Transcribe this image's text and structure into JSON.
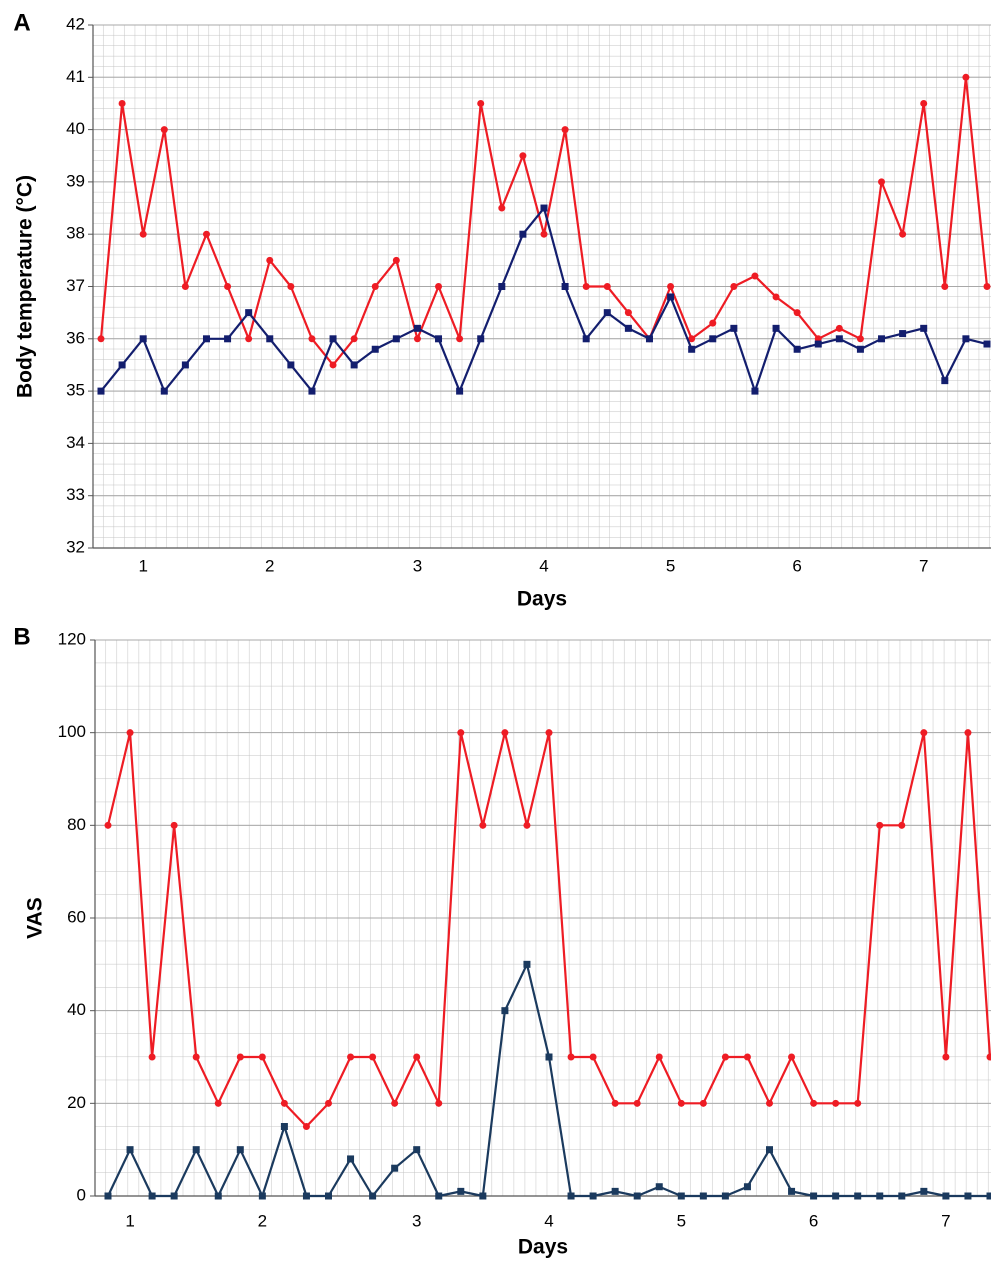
{
  "chart_data": [
    {
      "type": "line",
      "panel_label": "A",
      "ylabel": "Body temperature (°C)",
      "xlabel": "Days",
      "categories": [
        null,
        null,
        "1",
        null,
        null,
        null,
        null,
        null,
        "2",
        null,
        null,
        null,
        null,
        null,
        null,
        "3",
        null,
        null,
        null,
        null,
        null,
        "4",
        null,
        null,
        null,
        null,
        null,
        "5",
        null,
        null,
        null,
        null,
        null,
        "6",
        null,
        null,
        null,
        null,
        null,
        "7",
        null,
        null,
        null
      ],
      "series": [
        {
          "color": "#ee1c24",
          "marker": "circle",
          "values": [
            36,
            40.5,
            38,
            40,
            37,
            38,
            37,
            36,
            37.5,
            37,
            36,
            35.5,
            36,
            37,
            37.5,
            36,
            37,
            36,
            40.5,
            38.5,
            39.5,
            38,
            40,
            37,
            37,
            36.5,
            36,
            37,
            36,
            36.3,
            37,
            37.2,
            36.8,
            36.5,
            36,
            36.2,
            36,
            39,
            38,
            40.5,
            37,
            41,
            37
          ]
        },
        {
          "color": "#131e6e",
          "marker": "square",
          "values": [
            35,
            35.5,
            36,
            35,
            35.5,
            36,
            36,
            36.5,
            36,
            35.5,
            35,
            36,
            35.5,
            35.8,
            36,
            36.2,
            36,
            35,
            36,
            37,
            38,
            38.5,
            37,
            36,
            36.5,
            36.2,
            36,
            36.8,
            35.8,
            36,
            36.2,
            35,
            36.2,
            35.8,
            35.9,
            36,
            35.8,
            36,
            36.1,
            36.2,
            35.2,
            36,
            35.9
          ]
        }
      ],
      "ylim": [
        32,
        42
      ],
      "yticks": [
        32,
        33,
        34,
        35,
        36,
        37,
        38,
        39,
        40,
        41,
        42
      ],
      "grid": true
    },
    {
      "type": "line",
      "panel_label": "B",
      "ylabel": "VAS",
      "xlabel": "Days",
      "categories": [
        null,
        "1",
        null,
        null,
        null,
        null,
        null,
        "2",
        null,
        null,
        null,
        null,
        null,
        null,
        "3",
        null,
        null,
        null,
        null,
        null,
        "4",
        null,
        null,
        null,
        null,
        null,
        "5",
        null,
        null,
        null,
        null,
        null,
        "6",
        null,
        null,
        null,
        null,
        null,
        "7",
        null,
        null
      ],
      "series": [
        {
          "color": "#ee1c24",
          "marker": "circle",
          "values": [
            80,
            100,
            30,
            80,
            30,
            20,
            30,
            30,
            20,
            15,
            20,
            30,
            30,
            20,
            30,
            20,
            100,
            80,
            100,
            80,
            100,
            30,
            30,
            20,
            20,
            30,
            20,
            20,
            30,
            30,
            20,
            30,
            20,
            20,
            20,
            80,
            80,
            100,
            30,
            100,
            30
          ]
        },
        {
          "color": "#1b3a5e",
          "marker": "square",
          "values": [
            0,
            10,
            0,
            0,
            10,
            0,
            10,
            0,
            15,
            0,
            0,
            8,
            0,
            6,
            10,
            0,
            1,
            0,
            40,
            50,
            30,
            0,
            0,
            1,
            0,
            2,
            0,
            0,
            0,
            2,
            10,
            1,
            0,
            0,
            0,
            0,
            0,
            1,
            0,
            0,
            0
          ]
        }
      ],
      "ylim": [
        0,
        120
      ],
      "yticks": [
        0,
        20,
        40,
        60,
        80,
        100,
        120
      ],
      "grid": true
    }
  ]
}
